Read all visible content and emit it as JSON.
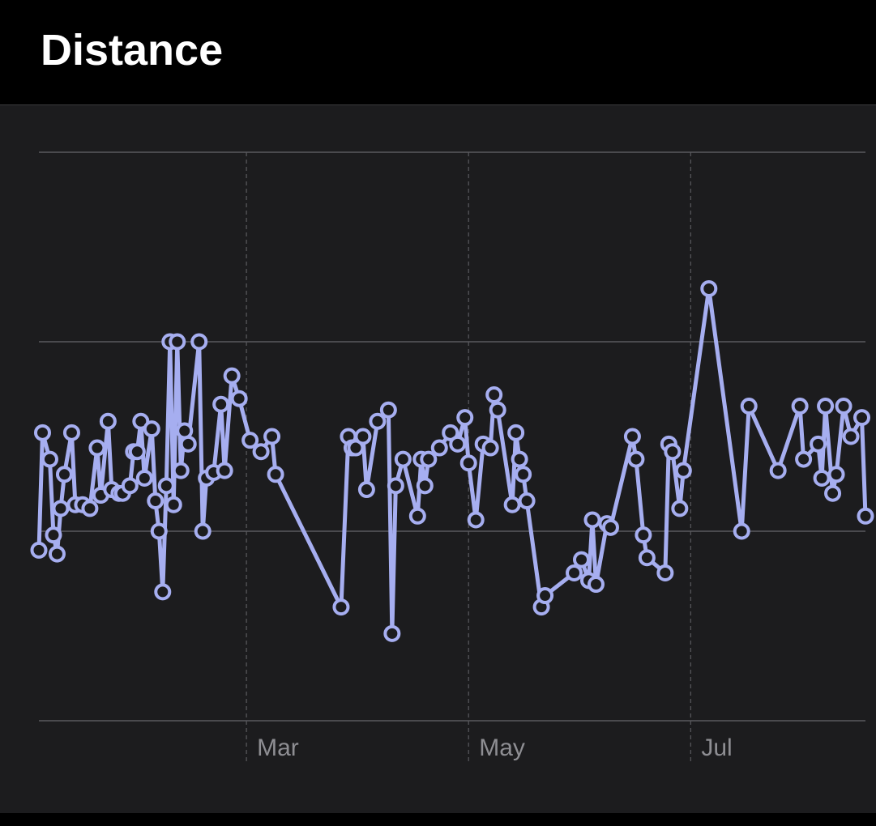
{
  "chart_data": {
    "type": "line",
    "title": "Distance",
    "x": [
      0,
      1,
      3,
      4,
      5,
      6,
      7,
      9,
      10,
      12,
      14,
      16,
      17,
      19,
      20,
      22,
      23,
      25,
      26,
      27,
      28,
      29,
      31,
      32,
      33,
      34,
      35,
      36,
      37,
      38,
      39,
      40,
      41,
      44,
      45,
      46,
      48,
      50,
      51,
      53,
      55,
      58,
      61,
      64,
      65,
      83,
      85,
      86,
      87,
      89,
      90,
      93,
      96,
      97,
      98,
      100,
      104,
      105,
      106,
      107,
      110,
      113,
      115,
      117,
      118,
      120,
      122,
      124,
      125,
      126,
      130,
      131,
      132,
      133,
      134,
      138,
      139,
      147,
      149,
      151,
      152,
      153,
      156,
      157,
      163,
      164,
      166,
      167,
      172,
      173,
      174,
      176,
      177,
      184,
      193,
      195,
      203,
      209,
      210,
      214,
      215,
      216,
      218,
      219,
      221,
      223,
      226,
      227
    ],
    "values": [
      0.9,
      1.52,
      1.38,
      0.98,
      0.88,
      1.12,
      1.3,
      1.52,
      1.14,
      1.14,
      1.12,
      1.44,
      1.19,
      1.58,
      1.22,
      1.2,
      1.2,
      1.24,
      1.42,
      1.42,
      1.58,
      1.28,
      1.54,
      1.16,
      1.0,
      0.68,
      1.24,
      2.0,
      1.14,
      2.0,
      1.32,
      1.53,
      1.46,
      2.0,
      1.0,
      1.28,
      1.31,
      1.67,
      1.32,
      1.82,
      1.7,
      1.48,
      1.42,
      1.5,
      1.3,
      0.6,
      1.5,
      1.44,
      1.44,
      1.5,
      1.22,
      1.58,
      1.64,
      0.46,
      1.24,
      1.38,
      1.08,
      1.38,
      1.24,
      1.38,
      1.44,
      1.52,
      1.46,
      1.6,
      1.36,
      1.06,
      1.46,
      1.44,
      1.72,
      1.64,
      1.14,
      1.52,
      1.38,
      1.3,
      1.16,
      0.6,
      0.66,
      0.78,
      0.85,
      0.74,
      1.06,
      0.72,
      1.04,
      1.02,
      1.5,
      1.38,
      0.98,
      0.86,
      0.78,
      1.46,
      1.42,
      1.12,
      1.32,
      2.28,
      1.0,
      1.66,
      1.32,
      1.66,
      1.38,
      1.46,
      1.28,
      1.66,
      1.2,
      1.3,
      1.66,
      1.5,
      1.6,
      1.08
    ],
    "color": "#a6aef0",
    "xlim": [
      0,
      227
    ],
    "xticks": [
      {
        "value": 57,
        "label": "Mar"
      },
      {
        "value": 118,
        "label": "May"
      },
      {
        "value": 179,
        "label": "Jul"
      }
    ],
    "ylim": [
      0,
      3
    ],
    "yticks": [
      0,
      1,
      2,
      3
    ],
    "grid": true
  }
}
